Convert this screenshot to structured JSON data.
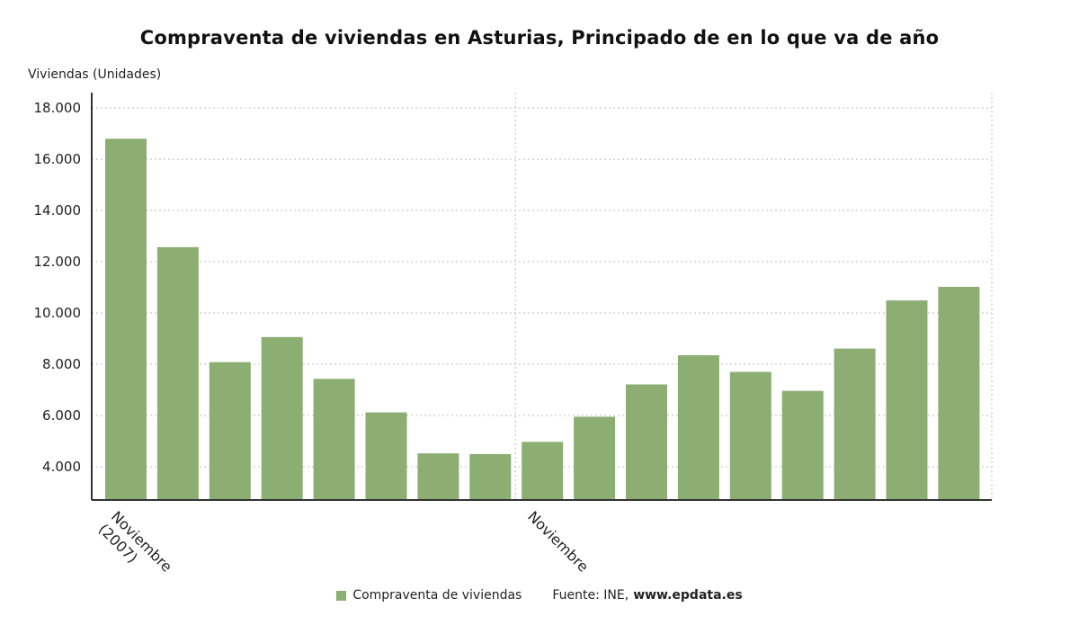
{
  "colors": {
    "bar": "#8cae73",
    "grid": "#bdbdbd",
    "axis": "#333333",
    "text": "#222222"
  },
  "chart_data": {
    "type": "bar",
    "title": "Compraventa de viviendas en Asturias, Principado de en lo que va de año",
    "ylabel": "Viviendas (Unidades)",
    "xlabel": "",
    "ylim": [
      2700,
      18600
    ],
    "yticks": [
      4000,
      6000,
      8000,
      10000,
      12000,
      14000,
      16000,
      18000
    ],
    "ytick_labels": [
      "4.000",
      "6.000",
      "8.000",
      "10.000",
      "12.000",
      "14.000",
      "16.000",
      "18.000"
    ],
    "x_tick_labels": [
      {
        "index": 0,
        "lines": [
          "Noviembre",
          "(2007)"
        ]
      },
      {
        "index": 8,
        "lines": [
          "Noviembre"
        ]
      }
    ],
    "grid": true,
    "legend_position": "bottom",
    "series": [
      {
        "name": "Compraventa de viviendas",
        "values": [
          16800,
          12570,
          8080,
          9060,
          7430,
          6120,
          4520,
          4490,
          4970,
          5950,
          7210,
          8350,
          7700,
          6960,
          8610,
          10490,
          11020
        ]
      }
    ]
  },
  "legend": {
    "series_label": "Compraventa de viviendas",
    "source_prefix": "Fuente: INE,",
    "source_site": "www.epdata.es"
  }
}
